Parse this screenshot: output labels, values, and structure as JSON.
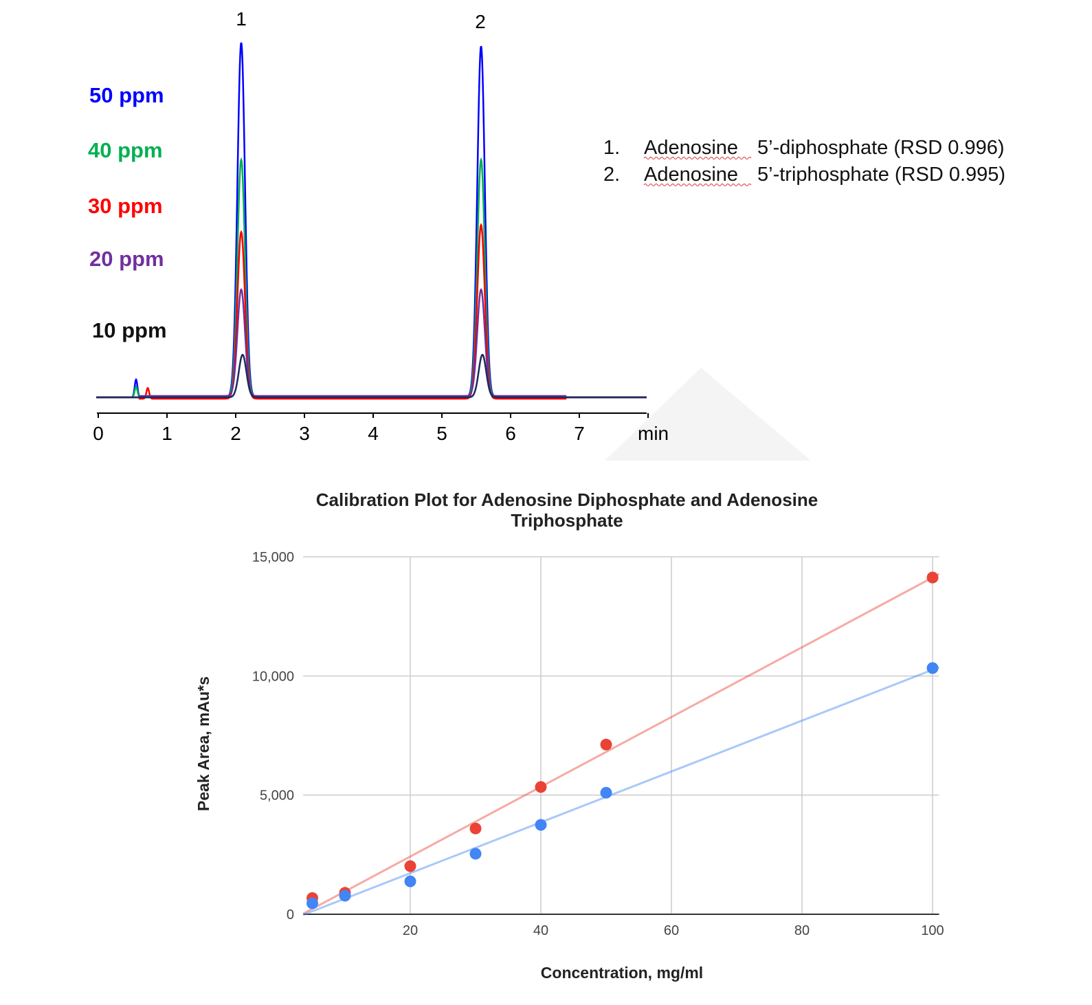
{
  "chart_data": [
    {
      "type": "line",
      "xlabel": "min",
      "xlim": [
        0,
        8
      ],
      "x_ticks": [
        "0",
        "1",
        "2",
        "3",
        "4",
        "5",
        "6",
        "7"
      ],
      "peak_labels": [
        {
          "label": "1",
          "retention_time": 2.08
        },
        {
          "label": "2",
          "retention_time": 5.57
        }
      ],
      "series": [
        {
          "name": "50 ppm",
          "color": "#0000ff",
          "peak_heights_relative": [
            1.0,
            0.99
          ],
          "minor_peak": {
            "time": 0.55,
            "height_relative": 0.05
          }
        },
        {
          "name": "40 ppm",
          "color": "#00b050",
          "peak_heights_relative": [
            0.67,
            0.67
          ],
          "minor_peak": {
            "time": 0.55,
            "height_relative": 0.03
          }
        },
        {
          "name": "30 ppm",
          "color": "#ff0000",
          "peak_heights_relative": [
            0.47,
            0.49
          ],
          "minor_peak": {
            "time": 0.72,
            "height_relative": 0.03
          }
        },
        {
          "name": "20 ppm",
          "color": "#7030a0",
          "peak_heights_relative": [
            0.3,
            0.3
          ]
        },
        {
          "name": "10 ppm",
          "color": "#111111",
          "trace_color": "#1c2a5c",
          "peak_heights_relative": [
            0.12,
            0.12
          ]
        }
      ],
      "legend": [
        {
          "num": "1.",
          "name": "Adenosine",
          "rest": "5’-diphosphate (RSD 0.996)"
        },
        {
          "num": "2.",
          "name": "Adenosine",
          "rest": "5’-triphosphate (RSD 0.995)"
        }
      ]
    },
    {
      "type": "scatter",
      "title_line1": "Calibration Plot for Adenosine Diphosphate and Adenosine",
      "title_line2": "Triphosphate",
      "xlabel": "Concentration, mg/ml",
      "ylabel": "Peak Area, mAu*s",
      "xlim": [
        3.6,
        101
      ],
      "ylim": [
        0,
        15000
      ],
      "x_ticks": [
        20,
        40,
        60,
        80,
        100
      ],
      "y_ticks": [
        0,
        5000,
        10000,
        15000
      ],
      "y_tick_labels": [
        "0",
        "5,000",
        "10,000",
        "15,000"
      ],
      "grid": true,
      "trendline": "linear",
      "series": [
        {
          "color": "#ea4335",
          "x": [
            5,
            10,
            20,
            30,
            40,
            50,
            100
          ],
          "y": [
            680,
            900,
            2020,
            3600,
            5340,
            7120,
            14130
          ]
        },
        {
          "color": "#4285f4",
          "x": [
            5,
            10,
            20,
            30,
            40,
            50,
            100
          ],
          "y": [
            460,
            780,
            1380,
            2540,
            3750,
            5100,
            10330
          ]
        }
      ]
    }
  ]
}
